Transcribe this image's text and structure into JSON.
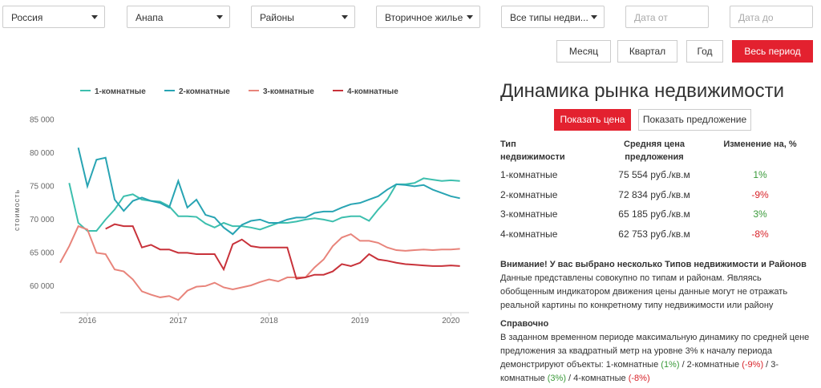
{
  "filters": [
    "Россия",
    "Анапа",
    "Районы",
    "Вторичное жилье",
    "Все типы недви..."
  ],
  "date_inputs": [
    "Дата от",
    "Дата до"
  ],
  "period_buttons": [
    "Месяц",
    "Квартал",
    "Год",
    "Весь период"
  ],
  "chart_data": {
    "type": "line",
    "y_label": "стоимость",
    "x": [
      2015.7,
      2015.8,
      2015.9,
      2016.0,
      2016.1,
      2016.2,
      2016.3,
      2016.4,
      2016.5,
      2016.6,
      2016.7,
      2016.8,
      2016.9,
      2017.0,
      2017.1,
      2017.2,
      2017.3,
      2017.4,
      2017.5,
      2017.6,
      2017.7,
      2017.8,
      2017.9,
      2018.0,
      2018.1,
      2018.2,
      2018.3,
      2018.4,
      2018.5,
      2018.6,
      2018.7,
      2018.8,
      2018.9,
      2019.0,
      2019.1,
      2019.2,
      2019.3,
      2019.4,
      2019.5,
      2019.6,
      2019.7,
      2019.8,
      2019.9,
      2020.0,
      2020.1
    ],
    "xlim": [
      2015.7,
      2020.2
    ],
    "xticks": [
      2016,
      2017,
      2018,
      2019,
      2020
    ],
    "ylim": [
      56000,
      86500
    ],
    "yticks": [
      {
        "value": 60000,
        "label": "60 000"
      },
      {
        "value": 65000,
        "label": "65 000"
      },
      {
        "value": 70000,
        "label": "70 000"
      },
      {
        "value": 75000,
        "label": "75 000"
      },
      {
        "value": 80000,
        "label": "80 000"
      },
      {
        "value": 85000,
        "label": "85 000"
      }
    ],
    "series": [
      {
        "name": "1-комнатные",
        "color": "#3dbfae",
        "values": [
          null,
          75500,
          69500,
          68300,
          68300,
          70000,
          71500,
          73500,
          73800,
          73000,
          72800,
          72700,
          72000,
          70500,
          70500,
          70400,
          69400,
          68800,
          69500,
          69000,
          69000,
          68800,
          68500,
          69000,
          69500,
          69500,
          69700,
          70000,
          70200,
          70000,
          69700,
          70300,
          70500,
          70500,
          69800,
          71500,
          73000,
          75300,
          75300,
          75500,
          76200,
          76000,
          75800,
          75900,
          75800
        ]
      },
      {
        "name": "2-комнатные",
        "color": "#28a4b3",
        "values": [
          null,
          null,
          80800,
          75000,
          79000,
          79300,
          73000,
          71300,
          72800,
          73300,
          72800,
          72500,
          71800,
          75800,
          71800,
          73000,
          70700,
          70300,
          68800,
          67800,
          69200,
          69800,
          70000,
          69500,
          69500,
          70000,
          70300,
          70300,
          71000,
          71200,
          71200,
          71800,
          72300,
          72500,
          73000,
          73500,
          74500,
          75300,
          75200,
          75000,
          75200,
          74500,
          74000,
          73500,
          73200
        ]
      },
      {
        "name": "3-комнатные",
        "color": "#e8847b",
        "values": [
          63500,
          66000,
          69000,
          68500,
          65000,
          64800,
          62500,
          62200,
          61000,
          59200,
          58700,
          58300,
          58500,
          57900,
          59300,
          59900,
          60000,
          60500,
          59800,
          59500,
          59800,
          60100,
          60600,
          61000,
          60700,
          61300,
          61300,
          61300,
          62800,
          64000,
          66000,
          67300,
          67800,
          66800,
          66800,
          66500,
          65800,
          65400,
          65300,
          65400,
          65500,
          65400,
          65500,
          65500,
          65600
        ]
      },
      {
        "name": "4-комнатные",
        "color": "#c8323a",
        "values": [
          null,
          null,
          null,
          null,
          null,
          68600,
          69300,
          69000,
          69000,
          65800,
          66200,
          65500,
          65500,
          65000,
          65000,
          64800,
          64800,
          64800,
          62500,
          66300,
          67000,
          66000,
          65800,
          65800,
          65800,
          65800,
          61100,
          61300,
          61700,
          61700,
          62200,
          63300,
          63000,
          63500,
          64800,
          64000,
          63800,
          63500,
          63300,
          63200,
          63100,
          63000,
          63000,
          63100,
          63000
        ]
      }
    ]
  },
  "panel": {
    "title": "Динамика рынка недвижимости",
    "buttons": [
      "Показать цена",
      "Показать предложение"
    ],
    "table": {
      "header": [
        "Тип недвижимости",
        "Средняя цена предложения",
        "Изменение на, %"
      ],
      "rows": [
        {
          "type": "1-комнатные",
          "price": "75 554 руб./кв.м",
          "change": "1%",
          "color": "#3a9a3a"
        },
        {
          "type": "2-комнатные",
          "price": "72 834 руб./кв.м",
          "change": "-9%",
          "color": "#d8232a"
        },
        {
          "type": "3-комнатные",
          "price": "65 185 руб./кв.м",
          "change": "3%",
          "color": "#3a9a3a"
        },
        {
          "type": "4-комнатные",
          "price": "62 753 руб./кв.м",
          "change": "-8%",
          "color": "#d8232a"
        }
      ]
    },
    "warning": {
      "title": "Внимание! У вас выбрано несколько Типов недвижимости и Районов",
      "text": "Данные представлены совокупно по типам и районам. Являясь обобщенным индикатором движения цены данные могут не отражать реальной картины по конкретному типу недвижимости или району"
    },
    "reference": {
      "title": "Справочно",
      "parts": [
        {
          "text": "В заданном временном периоде максимальную динамику по средней цене предложения за квадратный метр на уровне 3% к началу периода демонстрируют объекты: 1-комнатные "
        },
        {
          "text": "(1%)",
          "color": "#3a9a3a"
        },
        {
          "text": " / 2-комнатные "
        },
        {
          "text": "(-9%)",
          "color": "#d8232a"
        },
        {
          "text": " / 3-комнатные "
        },
        {
          "text": "(3%)",
          "color": "#3a9a3a"
        },
        {
          "text": " / 4-комнатные "
        },
        {
          "text": "(-8%)",
          "color": "#d8232a"
        }
      ]
    }
  }
}
